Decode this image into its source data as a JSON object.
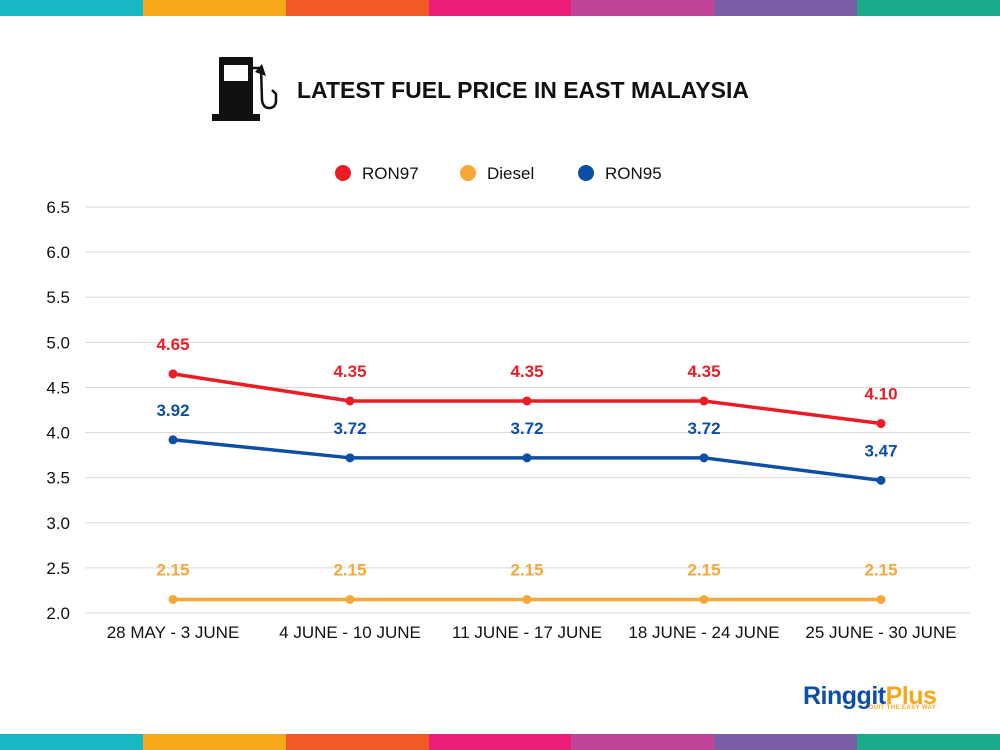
{
  "colors": {
    "stripes": [
      "#17b8c4",
      "#f7a81b",
      "#f15a24",
      "#ed1e79",
      "#c1449a",
      "#7b5ea7",
      "#1aab8a"
    ],
    "ron97": "#ed1c24",
    "diesel": "#f7a738",
    "ron95": "#0d4ea6",
    "grid": "#d9d9d9",
    "text": "#111111",
    "brand_blue": "#0d4ea6",
    "brand_orange": "#f7a81b"
  },
  "header": {
    "icon": "fuel-pump-icon"
  },
  "brand": {
    "part1": "Ringgit",
    "part2": "Plus",
    "tagline": "DUIT THE EASY WAY"
  },
  "chart_data": {
    "type": "line",
    "title": "LATEST FUEL PRICE IN EAST MALAYSIA",
    "xlabel": "",
    "ylabel": "",
    "categories": [
      "28 MAY - 3 JUNE",
      "4 JUNE - 10 JUNE",
      "11 JUNE - 17 JUNE",
      "18 JUNE - 24 JUNE",
      "25 JUNE - 30 JUNE"
    ],
    "ylim": [
      2.0,
      6.5
    ],
    "yticks": [
      "2.0",
      "2.5",
      "3.0",
      "3.5",
      "4.0",
      "4.5",
      "5.0",
      "5.5",
      "6.0",
      "6.5"
    ],
    "grid": true,
    "legend_position": "top-center",
    "series": [
      {
        "name": "RON97",
        "color": "#ed1c24",
        "values": [
          4.65,
          4.35,
          4.35,
          4.35,
          4.1
        ],
        "labels": [
          "4.65",
          "4.35",
          "4.35",
          "4.35",
          "4.10"
        ]
      },
      {
        "name": "Diesel",
        "color": "#f7a738",
        "values": [
          2.15,
          2.15,
          2.15,
          2.15,
          2.15
        ],
        "labels": [
          "2.15",
          "2.15",
          "2.15",
          "2.15",
          "2.15"
        ]
      },
      {
        "name": "RON95",
        "color": "#0d4ea6",
        "values": [
          3.92,
          3.72,
          3.72,
          3.72,
          3.47
        ],
        "labels": [
          "3.92",
          "3.72",
          "3.72",
          "3.72",
          "3.47"
        ]
      }
    ]
  }
}
